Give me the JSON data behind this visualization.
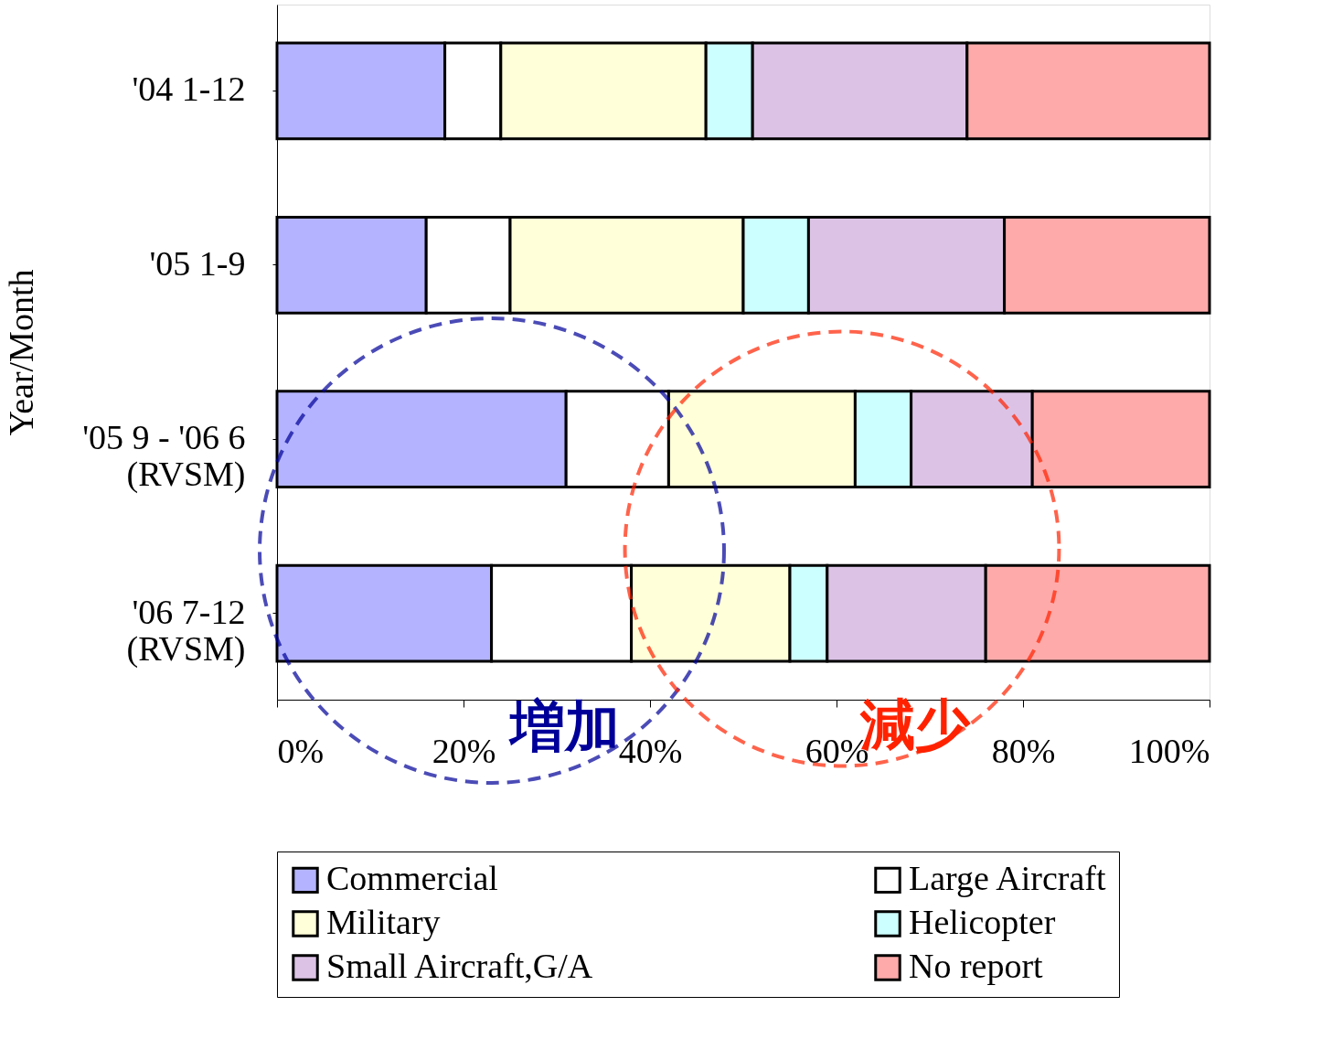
{
  "chart_data": {
    "type": "bar",
    "orientation": "horizontal",
    "stacked": true,
    "ylabel": "Year/Month",
    "categories": [
      "'04 1-12",
      "'05 1-9",
      "'05 9 - '06 6\n(RVSM)",
      "'06 7-12\n(RVSM)"
    ],
    "series": [
      {
        "name": "Commercial",
        "color": "#b3b3ff",
        "values": [
          18,
          16,
          31,
          23
        ]
      },
      {
        "name": "Large Aircraft",
        "color": "#ffffff",
        "values": [
          6,
          9,
          11,
          15
        ]
      },
      {
        "name": "Military",
        "color": "#ffffd9",
        "values": [
          22,
          25,
          20,
          17
        ]
      },
      {
        "name": "Helicopter",
        "color": "#ccffff",
        "values": [
          5,
          7,
          6,
          4
        ]
      },
      {
        "name": "Small Aircraft,G/A",
        "color": "#dcc3e6",
        "values": [
          23,
          21,
          13,
          17
        ]
      },
      {
        "name": "No report",
        "color": "#ffaaaa",
        "values": [
          26,
          22,
          19,
          24
        ]
      }
    ],
    "xlim": [
      0,
      100
    ],
    "xticks": [
      {
        "value": 0,
        "label": "0%"
      },
      {
        "value": 20,
        "label": "20%"
      },
      {
        "value": 40,
        "label": "40%"
      },
      {
        "value": 60,
        "label": "60%"
      },
      {
        "value": 80,
        "label": "80%"
      },
      {
        "value": 100,
        "label": "100%"
      }
    ],
    "annotations": [
      "増加",
      "減少"
    ],
    "grid": false,
    "legend": "bottom"
  }
}
